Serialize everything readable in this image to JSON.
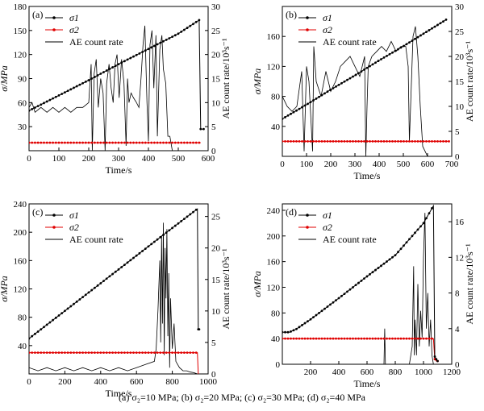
{
  "caption": "(a) σ₂=10 MPa; (b) σ₂=20 MPa; (c) σ₂=30 MPa; (d) σ₂=40 MPa",
  "chart_data": [
    {
      "panel_label": "(a)",
      "type": "line",
      "xlabel": "Time/s",
      "ylabel": "σ/MPa",
      "ylabel_right": "AE  count rate/10³s⁻¹",
      "xlim": [
        0,
        600
      ],
      "ylim": [
        0,
        180
      ],
      "ylim_right": [
        0,
        30
      ],
      "xticks": [
        0,
        100,
        200,
        300,
        400,
        500,
        600
      ],
      "yticks": [
        30,
        60,
        90,
        120,
        150,
        180
      ],
      "yticks_right": [
        0,
        5,
        10,
        15,
        20,
        25,
        30
      ],
      "legend": [
        "σ1",
        "σ2",
        "AE count rate"
      ],
      "series": [
        {
          "name": "σ1",
          "x": [
            0,
            100,
            200,
            300,
            400,
            500,
            570,
            575,
            585
          ],
          "y": [
            50,
            69,
            88,
            108,
            127,
            146,
            163,
            27,
            27
          ]
        },
        {
          "name": "σ2",
          "x": [
            0,
            100,
            200,
            300,
            400,
            500,
            575
          ],
          "y": [
            10,
            10,
            10,
            10,
            10,
            10,
            10
          ]
        },
        {
          "name": "AE count rate",
          "x": [
            0,
            10,
            20,
            40,
            60,
            80,
            100,
            120,
            140,
            160,
            180,
            200,
            208,
            212,
            218,
            225,
            232,
            240,
            248,
            255,
            260,
            268,
            275,
            282,
            288,
            295,
            302,
            310,
            318,
            325,
            330,
            335,
            342,
            350,
            360,
            368,
            375,
            382,
            388,
            395,
            400,
            405,
            412,
            418,
            425,
            430,
            438,
            445,
            450,
            458,
            465,
            472,
            480,
            500,
            520,
            540,
            560,
            565,
            570
          ],
          "y": [
            9,
            10,
            8,
            9,
            8,
            9,
            8,
            9,
            8,
            9,
            9,
            10,
            18,
            0,
            16,
            19,
            9,
            15,
            12,
            0,
            14,
            18,
            13,
            10,
            18,
            20,
            11,
            19,
            14,
            1,
            15,
            10,
            12,
            11,
            10,
            9,
            15,
            22,
            26,
            10,
            2,
            22,
            25,
            13,
            24,
            3,
            21,
            24,
            17,
            14,
            3,
            3,
            0,
            0,
            0,
            0,
            0,
            0,
            0
          ]
        }
      ]
    },
    {
      "panel_label": "(b)",
      "type": "line",
      "xlabel": "Time/s",
      "ylabel": "σ/MPa",
      "ylabel_right": "AE  count rate/10³s⁻¹",
      "xlim": [
        0,
        700
      ],
      "ylim": [
        0,
        200
      ],
      "ylim_right": [
        0,
        30
      ],
      "xticks": [
        0,
        100,
        200,
        300,
        400,
        500,
        600,
        700
      ],
      "yticks": [
        40,
        80,
        120,
        160
      ],
      "yticks_right": [
        0,
        5,
        10,
        15,
        20,
        25,
        30
      ],
      "legend": [
        "σ1",
        "σ2",
        "AE count rate"
      ],
      "series": [
        {
          "name": "σ1",
          "x": [
            0,
            100,
            200,
            300,
            400,
            500,
            600,
            680
          ],
          "y": [
            50,
            69,
            89,
            108,
            128,
            147,
            167,
            183
          ]
        },
        {
          "name": "σ2",
          "x": [
            0,
            100,
            200,
            300,
            400,
            500,
            600,
            690
          ],
          "y": [
            20,
            20,
            20,
            20,
            20,
            20,
            20,
            20
          ]
        },
        {
          "name": "AE count rate",
          "x": [
            0,
            20,
            40,
            60,
            80,
            90,
            100,
            110,
            125,
            130,
            140,
            160,
            180,
            200,
            220,
            240,
            260,
            280,
            300,
            320,
            340,
            345,
            350,
            355,
            370,
            390,
            410,
            430,
            450,
            470,
            490,
            510,
            520,
            525,
            540,
            550,
            560,
            570,
            580,
            600,
            620,
            640,
            660,
            680,
            690
          ],
          "y": [
            12,
            10,
            9,
            10,
            17,
            1,
            18,
            15,
            1,
            22,
            15,
            12,
            17,
            13,
            15,
            18,
            19,
            20,
            18,
            16,
            20,
            0,
            10,
            18,
            20,
            21,
            22,
            21,
            23,
            21,
            22,
            22,
            18,
            3,
            24,
            26,
            20,
            10,
            2,
            0,
            0,
            0,
            0,
            0,
            0
          ]
        }
      ]
    },
    {
      "panel_label": "(c)",
      "type": "line",
      "xlabel": "Time/s",
      "ylabel": "σ/MPa",
      "ylabel_right": "AE  count rate/10³s⁻¹",
      "xlim": [
        0,
        1000
      ],
      "ylim": [
        0,
        240
      ],
      "ylim_right": [
        0,
        27
      ],
      "xticks": [
        0,
        200,
        400,
        600,
        800,
        1000
      ],
      "yticks": [
        40,
        80,
        120,
        160,
        200,
        240
      ],
      "yticks_right": [
        0,
        5,
        10,
        15,
        20,
        25
      ],
      "legend": [
        "σ1",
        "σ2",
        "AE count rate"
      ],
      "series": [
        {
          "name": "σ1",
          "x": [
            0,
            200,
            400,
            600,
            800,
            940,
            945,
            950
          ],
          "y": [
            50,
            89,
            128,
            167,
            206,
            233,
            63,
            63
          ]
        },
        {
          "name": "σ2",
          "x": [
            0,
            200,
            400,
            600,
            800,
            940,
            945
          ],
          "y": [
            30,
            30,
            30,
            30,
            30,
            30,
            0
          ]
        },
        {
          "name": "AE count rate",
          "x": [
            0,
            50,
            100,
            150,
            200,
            250,
            300,
            350,
            400,
            450,
            500,
            550,
            600,
            650,
            700,
            710,
            720,
            730,
            735,
            740,
            745,
            750,
            755,
            760,
            765,
            770,
            775,
            780,
            785,
            790,
            800,
            810,
            820,
            840,
            860,
            880,
            900,
            920,
            940
          ],
          "y": [
            1,
            0.5,
            1,
            0.5,
            1,
            0.5,
            1,
            0.5,
            1,
            0.5,
            1,
            0.5,
            1,
            1.5,
            2,
            4,
            10,
            18,
            5,
            22,
            8,
            24,
            3,
            20,
            12,
            23,
            6,
            16,
            1,
            12,
            4,
            8,
            2,
            1,
            0.5,
            0.5,
            0.3,
            0.2,
            0
          ]
        }
      ]
    },
    {
      "panel_label": "(d)",
      "type": "line",
      "xlabel": "Time/s",
      "ylabel": "σ/MPa",
      "ylabel_right": "AE  count rate/10³s⁻¹",
      "xlim": [
        0,
        1200
      ],
      "ylim": [
        0,
        250
      ],
      "ylim_right": [
        0,
        18
      ],
      "xticks": [
        200,
        400,
        600,
        800,
        1000,
        1200
      ],
      "yticks": [
        0,
        40,
        80,
        120,
        160,
        200,
        240
      ],
      "yticks_right": [
        0,
        4,
        8,
        12,
        16
      ],
      "legend": [
        "σ1",
        "σ2",
        "AE count rate"
      ],
      "series": [
        {
          "name": "σ1",
          "x": [
            0,
            50,
            100,
            200,
            400,
            600,
            800,
            1000,
            1070,
            1080,
            1090,
            1100
          ],
          "y": [
            50,
            50,
            55,
            70,
            103,
            137,
            170,
            220,
            247,
            12,
            8,
            5
          ]
        },
        {
          "name": "σ2",
          "x": [
            0,
            200,
            400,
            600,
            800,
            1000,
            1070,
            1080,
            1090,
            1100
          ],
          "y": [
            40,
            40,
            40,
            40,
            40,
            40,
            40,
            8,
            5,
            5
          ]
        },
        {
          "name": "AE count rate",
          "x": [
            0,
            500,
            720,
            725,
            730,
            735,
            900,
            920,
            930,
            935,
            940,
            950,
            960,
            970,
            980,
            990,
            1000,
            1010,
            1020,
            1030,
            1040,
            1050,
            1060,
            1070
          ],
          "y": [
            0,
            0,
            0,
            4,
            0,
            0,
            0,
            2,
            11,
            1,
            5,
            1,
            9,
            2,
            6,
            3,
            12,
            17,
            4,
            8,
            2,
            5,
            1,
            0
          ]
        }
      ]
    }
  ]
}
